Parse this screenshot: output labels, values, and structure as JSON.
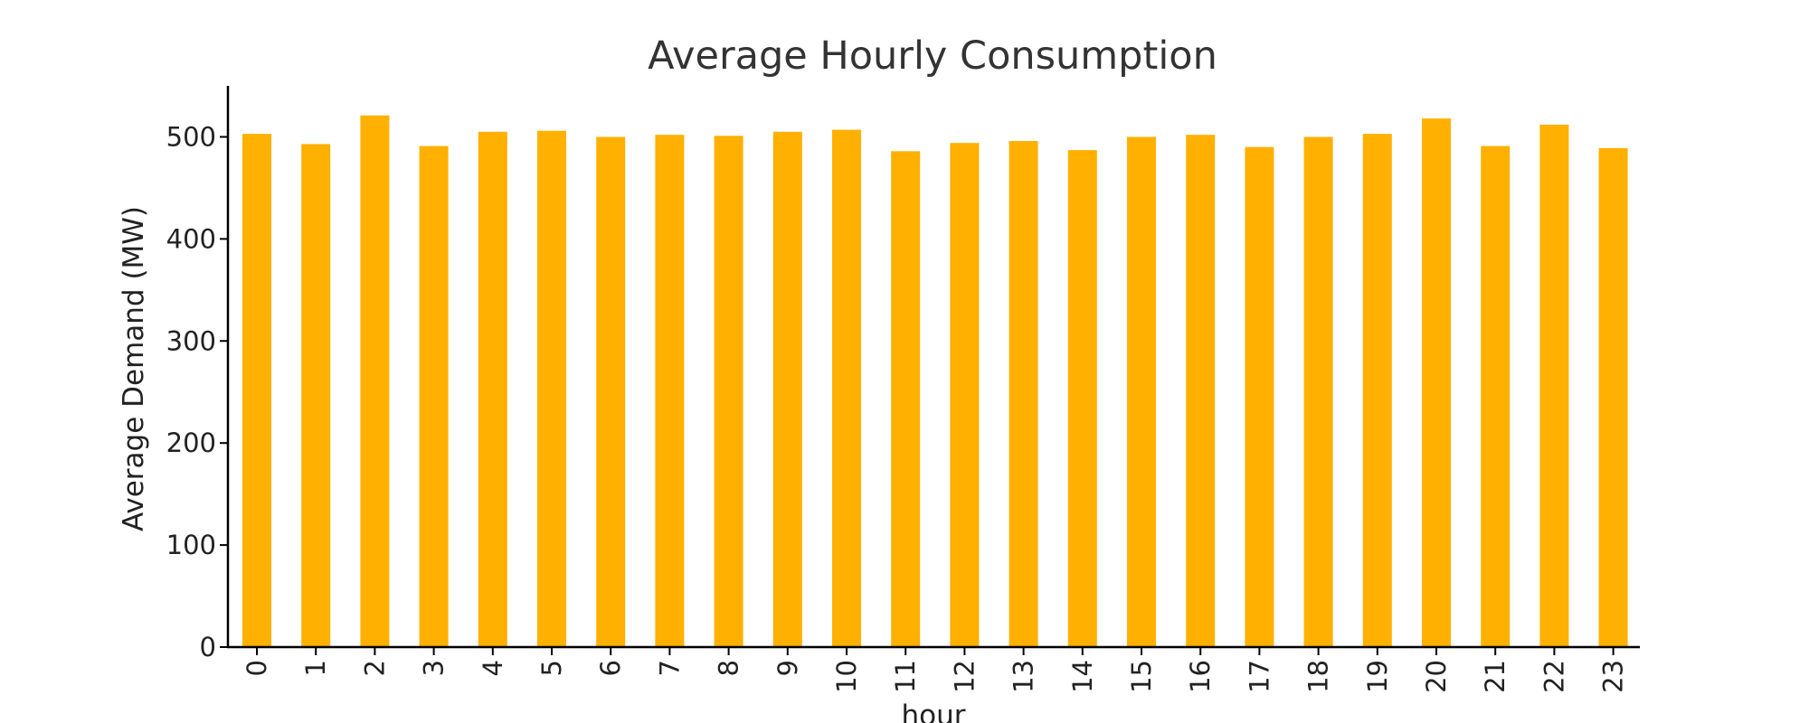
{
  "chart_data": {
    "type": "bar",
    "title": "Average Hourly Consumption",
    "xlabel": "hour",
    "ylabel": "Average Demand (MW)",
    "categories": [
      "0",
      "1",
      "2",
      "3",
      "4",
      "5",
      "6",
      "7",
      "8",
      "9",
      "10",
      "11",
      "12",
      "13",
      "14",
      "15",
      "16",
      "17",
      "18",
      "19",
      "20",
      "21",
      "22",
      "23"
    ],
    "values": [
      503,
      493,
      521,
      491,
      505,
      506,
      500,
      502,
      501,
      505,
      507,
      486,
      494,
      496,
      487,
      500,
      502,
      490,
      500,
      503,
      518,
      491,
      512,
      489
    ],
    "ylim": [
      0,
      550
    ],
    "yticks": [
      0,
      100,
      200,
      300,
      400,
      500
    ],
    "bar_color": "#FFB000",
    "grid": false,
    "legend": "none"
  }
}
